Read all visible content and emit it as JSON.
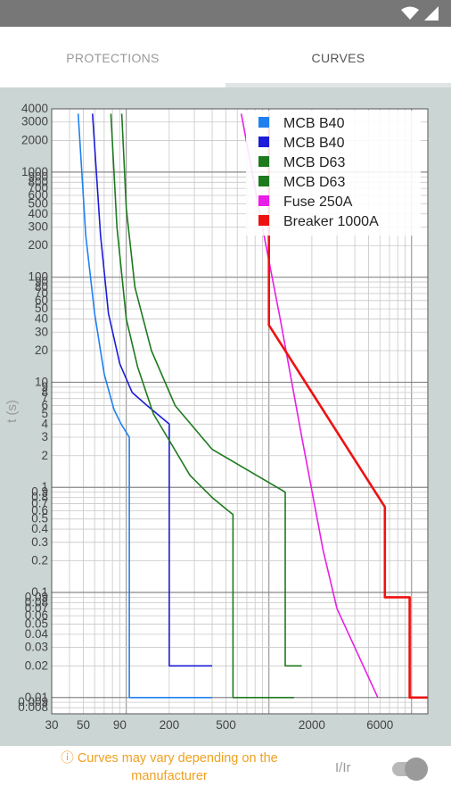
{
  "tabs": {
    "protections": "PROTECTIONS",
    "curves": "CURVES"
  },
  "footer": {
    "notice": "ⓘ Curves may vary depending on the manufacturer",
    "toggle_label": "I/Ir"
  },
  "colors": {
    "statusbar": "#777777",
    "chart_bg": "#cad5d4",
    "plot_bg": "#ffffff",
    "warning": "#f0a020"
  },
  "chart_data": {
    "type": "line",
    "scale": "log-log",
    "ylabel": "t (s)",
    "xlabel": "",
    "xlim": [
      30,
      13000
    ],
    "ylim": [
      0.007,
      4000
    ],
    "grid": true,
    "legend_position": "top-right",
    "y_ticks": [
      "4000",
      "3000",
      "2000",
      "1000",
      "900",
      "800",
      "700",
      "600",
      "500",
      "400",
      "300",
      "200",
      "100",
      "90",
      "80",
      "70",
      "60",
      "50",
      "40",
      "30",
      "20",
      "10",
      "9",
      "8",
      "7",
      "6",
      "5",
      "4",
      "3",
      "2",
      "1",
      "0.9",
      "0.8",
      "0.7",
      "0.6",
      "0.5",
      "0.4",
      "0.3",
      "0.2",
      "0.1",
      "0.09",
      "0.08",
      "0.07",
      "0.06",
      "0.05",
      "0.04",
      "0.03",
      "0.02",
      "0.01",
      "0.009",
      "0.008"
    ],
    "x_ticks": [
      "30",
      "50",
      "90",
      "200",
      "500",
      "2000",
      "6000"
    ],
    "series": [
      {
        "name": "MCB B40",
        "color": "#2080f0",
        "width": 1.6,
        "points": [
          [
            46,
            3600
          ],
          [
            52,
            250
          ],
          [
            60,
            45
          ],
          [
            70,
            12
          ],
          [
            82,
            5.5
          ],
          [
            92,
            4
          ],
          [
            105,
            3
          ],
          [
            105,
            0.01
          ],
          [
            400,
            0.01
          ]
        ]
      },
      {
        "name": "MCB B40",
        "color": "#1c1cd8",
        "width": 1.6,
        "points": [
          [
            58,
            3600
          ],
          [
            66,
            250
          ],
          [
            75,
            45
          ],
          [
            90,
            15
          ],
          [
            110,
            8
          ],
          [
            140,
            6
          ],
          [
            200,
            4
          ],
          [
            200,
            0.02
          ],
          [
            400,
            0.02
          ]
        ]
      },
      {
        "name": "MCB D63",
        "color": "#1e7a1e",
        "width": 1.6,
        "points": [
          [
            78,
            3600
          ],
          [
            86,
            300
          ],
          [
            100,
            40
          ],
          [
            120,
            14
          ],
          [
            155,
            5
          ],
          [
            200,
            2.8
          ],
          [
            280,
            1.3
          ],
          [
            400,
            0.8
          ],
          [
            560,
            0.55
          ],
          [
            560,
            0.01
          ],
          [
            1500,
            0.01
          ]
        ]
      },
      {
        "name": "MCB D63",
        "color": "#1e7a1e",
        "width": 1.6,
        "points": [
          [
            93,
            3600
          ],
          [
            100,
            450
          ],
          [
            115,
            80
          ],
          [
            150,
            20
          ],
          [
            220,
            6
          ],
          [
            400,
            2.3
          ],
          [
            1300,
            0.9
          ],
          [
            1300,
            0.02
          ],
          [
            1700,
            0.02
          ]
        ]
      },
      {
        "name": "Fuse 250A",
        "color": "#e81ee8",
        "width": 1.6,
        "points": [
          [
            640,
            3600
          ],
          [
            900,
            300
          ],
          [
            1200,
            40
          ],
          [
            1700,
            3
          ],
          [
            2400,
            0.25
          ],
          [
            3000,
            0.07
          ],
          [
            5800,
            0.01
          ]
        ]
      },
      {
        "name": "Breaker 1000A",
        "color": "#ee1111",
        "width": 2.6,
        "points": [
          [
            1000,
            3600
          ],
          [
            1000,
            35
          ],
          [
            6500,
            0.65
          ],
          [
            6500,
            0.09
          ],
          [
            9700,
            0.09
          ],
          [
            9700,
            0.01
          ],
          [
            13000,
            0.01
          ]
        ]
      }
    ]
  }
}
